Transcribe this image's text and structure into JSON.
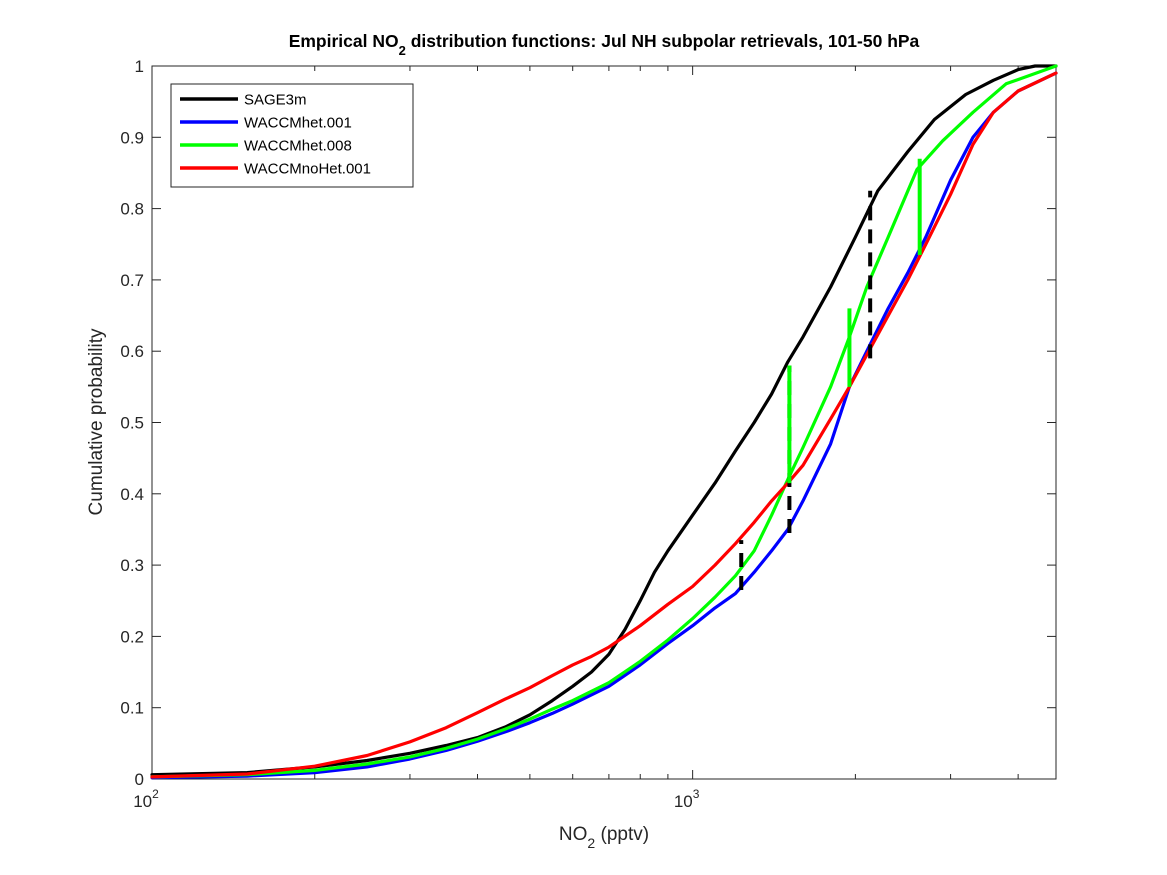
{
  "chart_data": {
    "type": "line",
    "title_parts": [
      "Empirical NO",
      "2",
      " distribution functions: Jul NH subpolar retrievals, 101-50 hPa"
    ],
    "xlabel_parts": [
      "NO",
      "2",
      " (pptv)"
    ],
    "ylabel": "Cumulative probability",
    "x_scale": "log",
    "xlim": [
      100,
      4700
    ],
    "ylim": [
      0,
      1
    ],
    "x_major_ticks": [
      100,
      1000
    ],
    "x_tick_labels": [
      {
        "base": "10",
        "exp": "2"
      },
      {
        "base": "10",
        "exp": "3"
      }
    ],
    "x_minor_ticks": [
      200,
      300,
      400,
      500,
      600,
      700,
      800,
      900,
      2000,
      3000,
      4000
    ],
    "y_ticks": [
      0,
      0.1,
      0.2,
      0.3,
      0.4,
      0.5,
      0.6,
      0.7,
      0.8,
      0.9,
      1
    ],
    "y_tick_labels": [
      "0",
      "0.1",
      "0.2",
      "0.3",
      "0.4",
      "0.5",
      "0.6",
      "0.7",
      "0.8",
      "0.9",
      "1"
    ],
    "grid": false,
    "legend_position": "top-left",
    "series": [
      {
        "name": "SAGE3m",
        "color": "#000000",
        "points": [
          [
            100,
            0.006
          ],
          [
            150,
            0.009
          ],
          [
            200,
            0.017
          ],
          [
            250,
            0.026
          ],
          [
            300,
            0.036
          ],
          [
            350,
            0.047
          ],
          [
            400,
            0.058
          ],
          [
            450,
            0.073
          ],
          [
            500,
            0.09
          ],
          [
            550,
            0.11
          ],
          [
            600,
            0.13
          ],
          [
            650,
            0.15
          ],
          [
            700,
            0.175
          ],
          [
            750,
            0.21
          ],
          [
            800,
            0.25
          ],
          [
            850,
            0.29
          ],
          [
            900,
            0.32
          ],
          [
            1000,
            0.37
          ],
          [
            1100,
            0.415
          ],
          [
            1200,
            0.46
          ],
          [
            1300,
            0.5
          ],
          [
            1400,
            0.54
          ],
          [
            1500,
            0.585
          ],
          [
            1600,
            0.62
          ],
          [
            1800,
            0.69
          ],
          [
            2000,
            0.76
          ],
          [
            2200,
            0.825
          ],
          [
            2500,
            0.88
          ],
          [
            2800,
            0.925
          ],
          [
            3200,
            0.96
          ],
          [
            3600,
            0.98
          ],
          [
            4000,
            0.995
          ],
          [
            4300,
            1.0
          ],
          [
            4700,
            1.0
          ]
        ]
      },
      {
        "name": "WACCMhet.001",
        "color": "#0000ff",
        "points": [
          [
            100,
            0.002
          ],
          [
            150,
            0.004
          ],
          [
            200,
            0.009
          ],
          [
            250,
            0.017
          ],
          [
            300,
            0.028
          ],
          [
            350,
            0.04
          ],
          [
            400,
            0.053
          ],
          [
            450,
            0.066
          ],
          [
            500,
            0.079
          ],
          [
            550,
            0.092
          ],
          [
            600,
            0.105
          ],
          [
            700,
            0.13
          ],
          [
            800,
            0.16
          ],
          [
            900,
            0.19
          ],
          [
            1000,
            0.215
          ],
          [
            1100,
            0.24
          ],
          [
            1200,
            0.26
          ],
          [
            1300,
            0.29
          ],
          [
            1400,
            0.32
          ],
          [
            1500,
            0.35
          ],
          [
            1600,
            0.39
          ],
          [
            1800,
            0.47
          ],
          [
            1950,
            0.55
          ],
          [
            2100,
            0.6
          ],
          [
            2300,
            0.66
          ],
          [
            2500,
            0.71
          ],
          [
            2700,
            0.76
          ],
          [
            3000,
            0.84
          ],
          [
            3300,
            0.9
          ],
          [
            3600,
            0.935
          ],
          [
            4000,
            0.965
          ],
          [
            4700,
            0.99
          ]
        ]
      },
      {
        "name": "WACCMhet.008",
        "color": "#00ff00",
        "points": [
          [
            100,
            0.003
          ],
          [
            150,
            0.006
          ],
          [
            200,
            0.012
          ],
          [
            250,
            0.021
          ],
          [
            300,
            0.031
          ],
          [
            350,
            0.043
          ],
          [
            400,
            0.056
          ],
          [
            450,
            0.07
          ],
          [
            500,
            0.084
          ],
          [
            550,
            0.098
          ],
          [
            600,
            0.11
          ],
          [
            700,
            0.135
          ],
          [
            800,
            0.165
          ],
          [
            900,
            0.195
          ],
          [
            1000,
            0.225
          ],
          [
            1100,
            0.255
          ],
          [
            1200,
            0.285
          ],
          [
            1300,
            0.32
          ],
          [
            1400,
            0.37
          ],
          [
            1500,
            0.42
          ],
          [
            1600,
            0.465
          ],
          [
            1800,
            0.55
          ],
          [
            1950,
            0.62
          ],
          [
            2100,
            0.69
          ],
          [
            2300,
            0.76
          ],
          [
            2600,
            0.855
          ],
          [
            2900,
            0.895
          ],
          [
            3300,
            0.935
          ],
          [
            3800,
            0.975
          ],
          [
            4700,
            1.0
          ]
        ]
      },
      {
        "name": "WACCMnoHet.001",
        "color": "#ff0000",
        "points": [
          [
            100,
            0.003
          ],
          [
            150,
            0.007
          ],
          [
            200,
            0.018
          ],
          [
            250,
            0.033
          ],
          [
            300,
            0.052
          ],
          [
            350,
            0.072
          ],
          [
            400,
            0.093
          ],
          [
            450,
            0.112
          ],
          [
            500,
            0.128
          ],
          [
            550,
            0.145
          ],
          [
            600,
            0.16
          ],
          [
            650,
            0.172
          ],
          [
            700,
            0.185
          ],
          [
            800,
            0.215
          ],
          [
            900,
            0.245
          ],
          [
            1000,
            0.27
          ],
          [
            1100,
            0.3
          ],
          [
            1200,
            0.33
          ],
          [
            1300,
            0.36
          ],
          [
            1400,
            0.39
          ],
          [
            1500,
            0.415
          ],
          [
            1600,
            0.44
          ],
          [
            1800,
            0.505
          ],
          [
            1950,
            0.55
          ],
          [
            2100,
            0.595
          ],
          [
            2300,
            0.65
          ],
          [
            2500,
            0.7
          ],
          [
            2700,
            0.75
          ],
          [
            3000,
            0.82
          ],
          [
            3300,
            0.89
          ],
          [
            3600,
            0.935
          ],
          [
            4000,
            0.965
          ],
          [
            4700,
            0.99
          ]
        ]
      }
    ],
    "annotations": [
      {
        "kind": "dashed-vertical",
        "color": "#000000",
        "x": 1230,
        "y": [
          0.265,
          0.335
        ]
      },
      {
        "kind": "dashed-vertical",
        "color": "#000000",
        "x": 1510,
        "y": [
          0.345,
          0.58
        ]
      },
      {
        "kind": "dashed-vertical",
        "color": "#000000",
        "x": 2130,
        "y": [
          0.59,
          0.825
        ]
      },
      {
        "kind": "solid-vertical",
        "color": "#00ff00",
        "x": 1510,
        "y": [
          0.415,
          0.58
        ]
      },
      {
        "kind": "solid-vertical",
        "color": "#00ff00",
        "x": 1950,
        "y": [
          0.55,
          0.66
        ]
      },
      {
        "kind": "solid-vertical",
        "color": "#00ff00",
        "x": 2630,
        "y": [
          0.735,
          0.87
        ]
      }
    ]
  }
}
